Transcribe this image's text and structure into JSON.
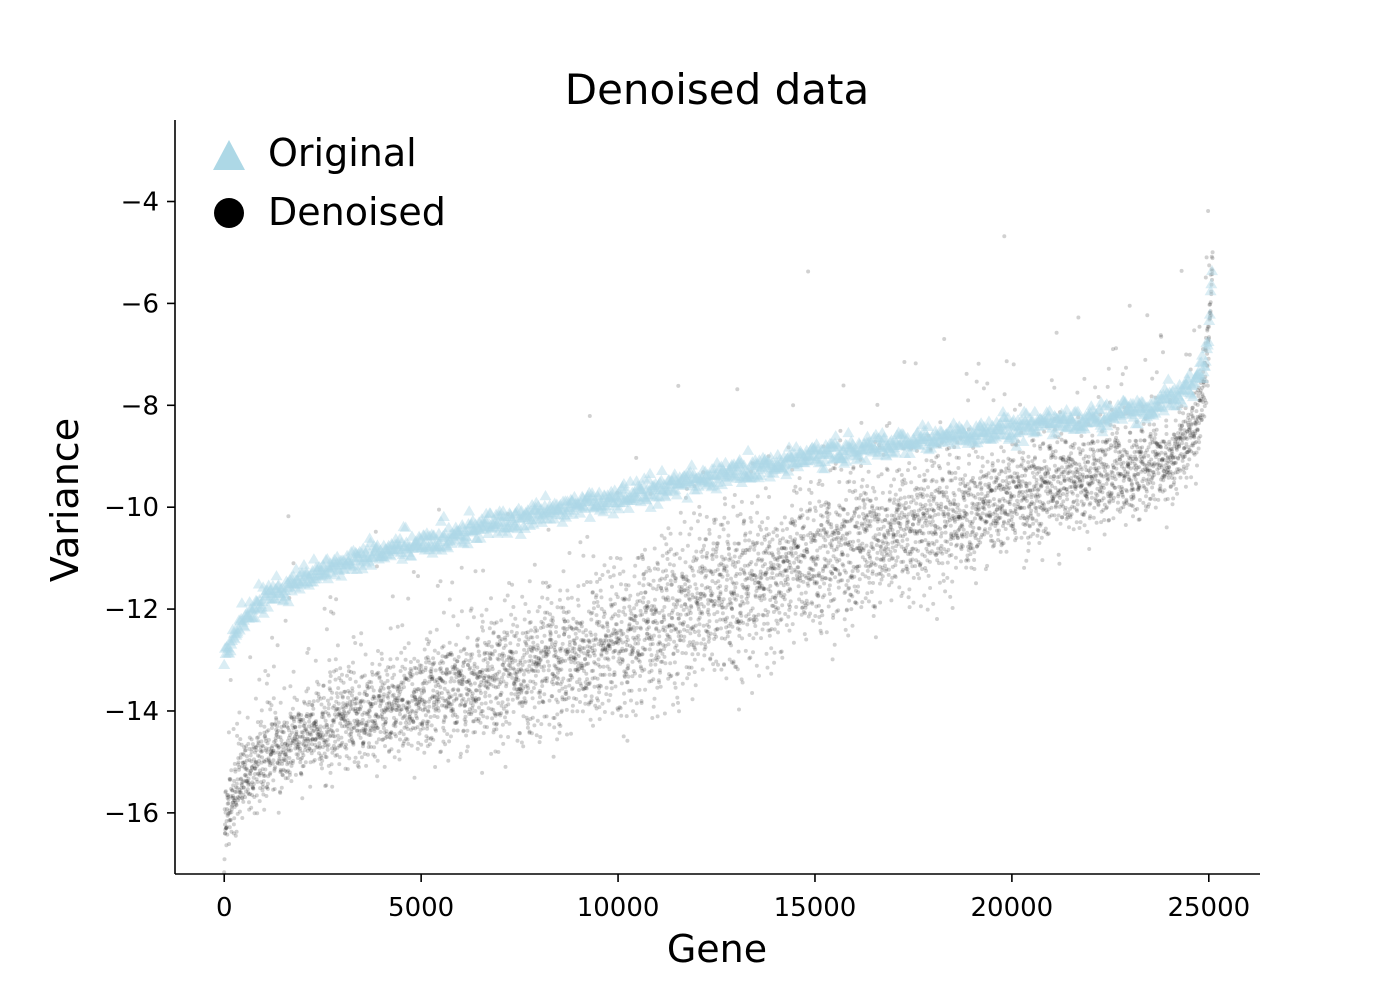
{
  "chart_data": {
    "type": "scatter",
    "title": "Denoised data",
    "xlabel": "Gene",
    "ylabel": "Variance",
    "xlim": [
      -1250,
      26300
    ],
    "ylim": [
      -17.2,
      -2.4
    ],
    "x_ticks": [
      0,
      5000,
      10000,
      15000,
      20000,
      25000
    ],
    "x_tick_labels": [
      "0",
      "5000",
      "10000",
      "15000",
      "20000",
      "25000"
    ],
    "y_ticks": [
      -4,
      -6,
      -8,
      -10,
      -12,
      -14,
      -16
    ],
    "y_tick_labels": [
      "−4",
      "−6",
      "−8",
      "−10",
      "−12",
      "−14",
      "−16"
    ],
    "grid": false,
    "legend_position": "top-left",
    "series": [
      {
        "name": "Original",
        "marker": "triangle",
        "color": "#add8e6",
        "n_points": 25100,
        "trend": {
          "x": [
            0,
            200,
            500,
            1000,
            2000,
            3000,
            5000,
            7500,
            10000,
            12500,
            15000,
            17500,
            20000,
            22500,
            23500,
            24200,
            24700,
            24900,
            25000,
            25100
          ],
          "y": [
            -13.0,
            -12.6,
            -12.2,
            -11.8,
            -11.4,
            -11.1,
            -10.7,
            -10.2,
            -9.8,
            -9.4,
            -9.0,
            -8.7,
            -8.45,
            -8.2,
            -8.05,
            -7.8,
            -7.5,
            -7.2,
            -6.6,
            -5.0
          ]
        }
      },
      {
        "name": "Denoised",
        "marker": "circle",
        "color": "#000000",
        "n_points": 25100,
        "trend": {
          "x": [
            0,
            100,
            300,
            600,
            1000,
            2000,
            3000,
            5000,
            7500,
            10000,
            12500,
            15000,
            17500,
            20000,
            22500,
            23500,
            24200,
            24700,
            24900,
            25000,
            25100
          ],
          "y": [
            -16.2,
            -15.9,
            -15.6,
            -15.2,
            -14.9,
            -14.5,
            -14.2,
            -13.8,
            -13.3,
            -12.7,
            -11.8,
            -11.1,
            -10.4,
            -9.8,
            -9.35,
            -9.2,
            -8.9,
            -8.3,
            -7.6,
            -6.6,
            -5.0
          ]
        }
      }
    ]
  }
}
